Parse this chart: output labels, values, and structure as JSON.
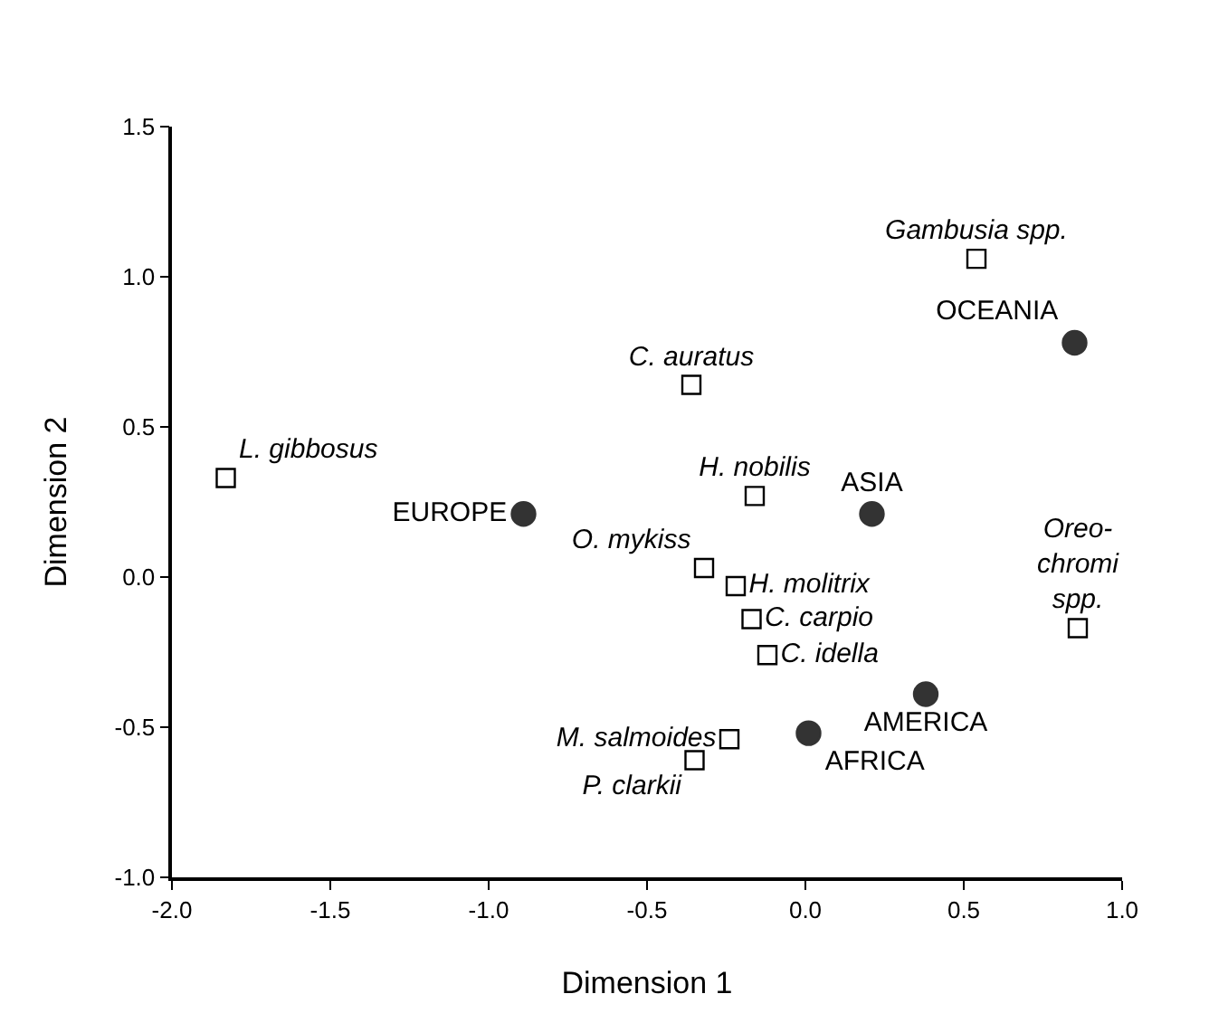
{
  "chart_data": {
    "type": "scatter",
    "xlabel": "Dimension 1",
    "ylabel": "Dimension 2",
    "xlim": [
      -2.0,
      1.0
    ],
    "xticks": [
      {
        "value": -2,
        "label": "-2.0"
      },
      {
        "value": -1.5,
        "label": "-1.5"
      },
      {
        "value": -1,
        "label": "-1.0"
      },
      {
        "value": -0.5,
        "label": "-0.5"
      },
      {
        "value": 0,
        "label": "0.0"
      },
      {
        "value": 0.5,
        "label": "0.5"
      },
      {
        "value": 1,
        "label": "1.0"
      }
    ],
    "ylim": [
      -1.0,
      1.5
    ],
    "yticks": [
      {
        "value": -1,
        "label": "-1.0"
      },
      {
        "value": -0.5,
        "label": "-0.5"
      },
      {
        "value": 0,
        "label": "0.0"
      },
      {
        "value": 0.5,
        "label": "0.5"
      },
      {
        "value": 1,
        "label": "1.0"
      },
      {
        "value": 1.5,
        "label": "1.5"
      }
    ],
    "grid": false,
    "series": [
      {
        "color": "#000000",
        "marker": "square",
        "x": [
          0.54,
          -0.36,
          -1.83,
          -0.16,
          -0.32,
          -0.22,
          -0.17,
          -0.12,
          -0.24,
          -0.35,
          0.86
        ],
        "values": [
          1.06,
          0.64,
          0.33,
          0.27,
          0.03,
          -0.03,
          -0.14,
          -0.26,
          -0.54,
          -0.61,
          -0.17
        ],
        "value_labels": [
          "Gambusia spp.",
          "C. auratus",
          "L. gibbosus",
          "H. nobilis",
          "O. mykiss",
          "H. molitrix",
          "C. carpio",
          "C. idella",
          "M. salmoides",
          "P. clarkii",
          "Oreo-\nchromi\nspp."
        ]
      },
      {
        "color": "#333333",
        "marker": "circle",
        "x": [
          -0.89,
          0.21,
          0.85,
          0.38,
          0.01
        ],
        "values": [
          0.21,
          0.21,
          0.78,
          -0.39,
          -0.52
        ],
        "value_labels": [
          "EUROPE",
          "ASIA",
          "OCEANIA",
          "AMERICA",
          "AFRICA"
        ]
      }
    ]
  }
}
